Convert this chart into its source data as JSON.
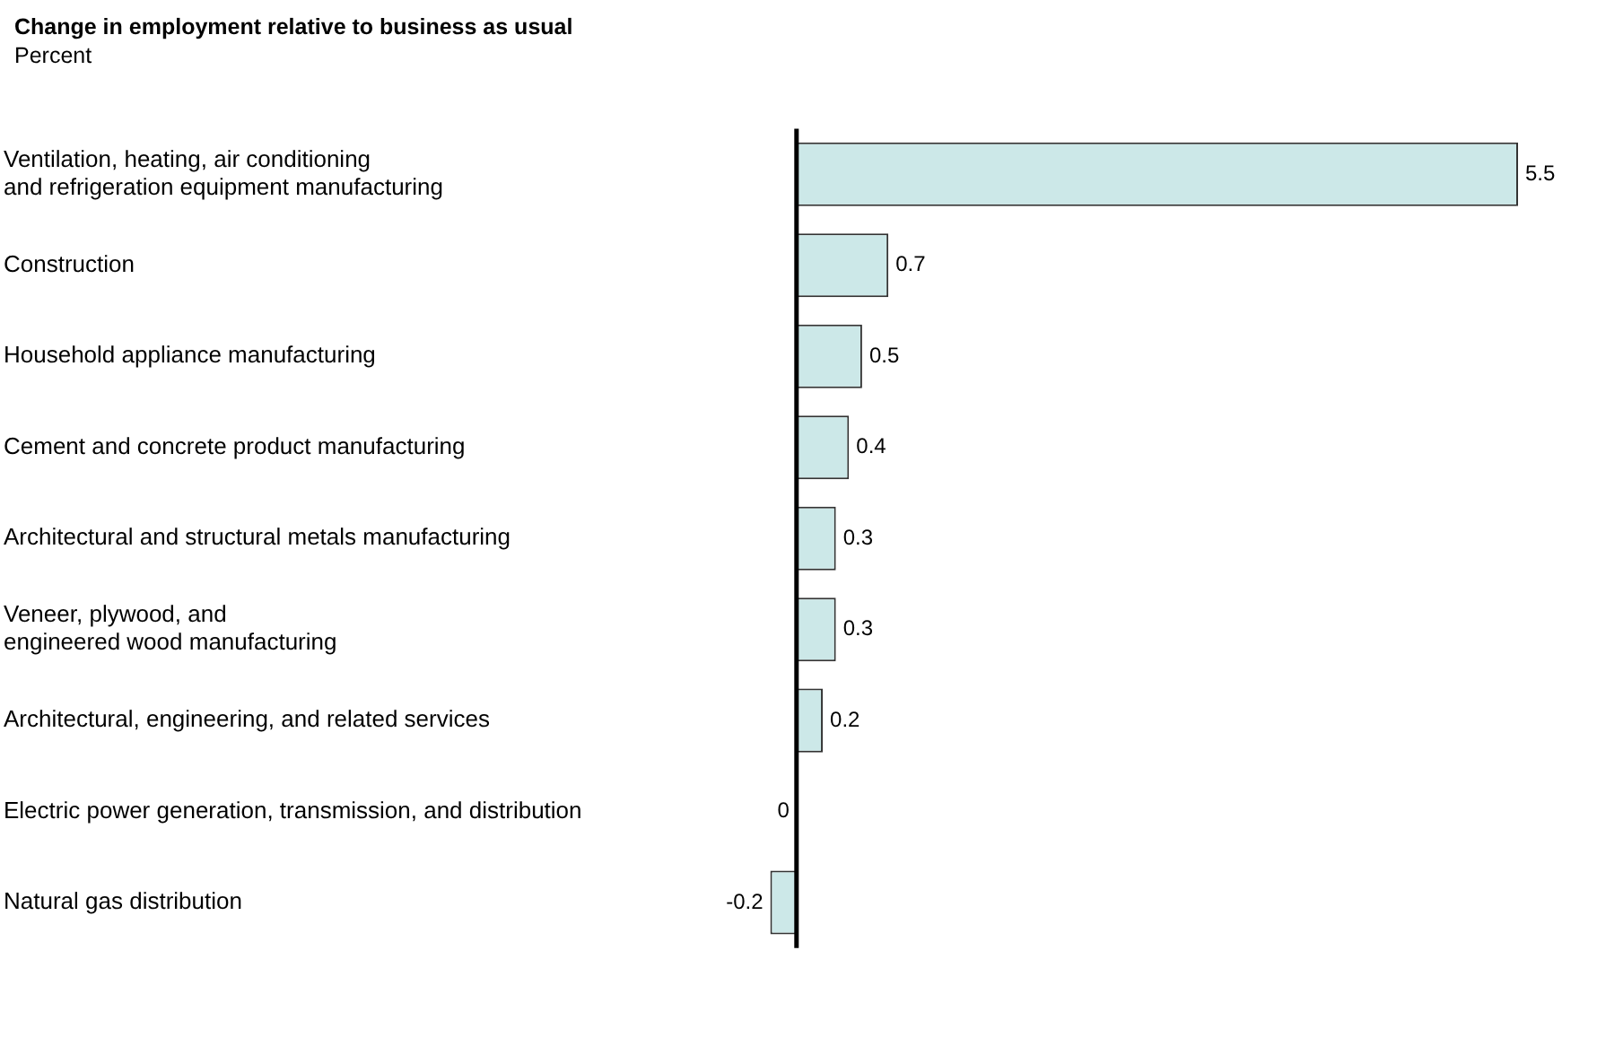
{
  "chart_data": {
    "type": "bar",
    "orientation": "horizontal",
    "title": "Change in employment relative to business as usual",
    "subtitle": "Percent",
    "categories": [
      "Ventilation, heating, air conditioning\nand refrigeration equipment manufacturing",
      "Construction",
      "Household appliance manufacturing",
      "Cement and concrete product manufacturing",
      "Architectural and structural metals manufacturing",
      "Veneer, plywood, and\nengineered wood manufacturing",
      "Architectural, engineering, and related services",
      "Electric power generation, transmission, and distribution",
      "Natural gas distribution"
    ],
    "values": [
      5.5,
      0.7,
      0.5,
      0.4,
      0.3,
      0.3,
      0.2,
      0,
      -0.2
    ],
    "color": "#cce8e8",
    "data_labels": true,
    "grid": false,
    "legend": false
  }
}
